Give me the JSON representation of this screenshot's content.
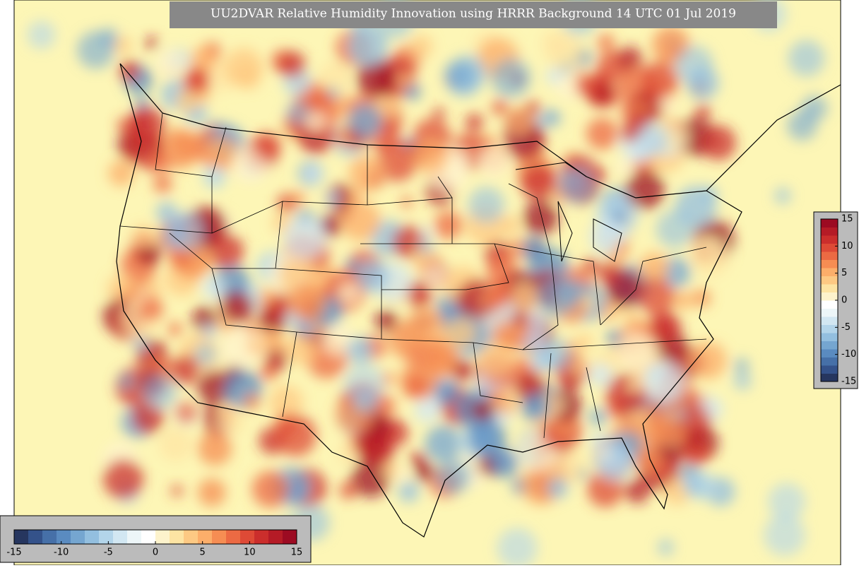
{
  "title": "UU2DVAR Relative Humidity Innovation using HRRR Background 14 UTC 01 Jul 2019",
  "colorbar_horizontal": {
    "range": [
      -15,
      15
    ],
    "ticks": [
      -15,
      -10,
      -5,
      0,
      5,
      10,
      15
    ]
  },
  "colorbar_vertical": {
    "range": [
      -15,
      15
    ],
    "ticks": [
      -15,
      -10,
      -5,
      0,
      5,
      10,
      15
    ]
  },
  "colors": [
    "#26365f",
    "#34528a",
    "#4670a8",
    "#5a8bc0",
    "#75a6d0",
    "#93bfdf",
    "#b3d5ea",
    "#d2e7f2",
    "#edf6f8",
    "#ffffff",
    "#fdf3cc",
    "#fde4a3",
    "#fdc983",
    "#fcae6a",
    "#f68d53",
    "#ec6a43",
    "#de4a36",
    "#cb2e2c",
    "#b51b26",
    "#9c0b22"
  ]
}
